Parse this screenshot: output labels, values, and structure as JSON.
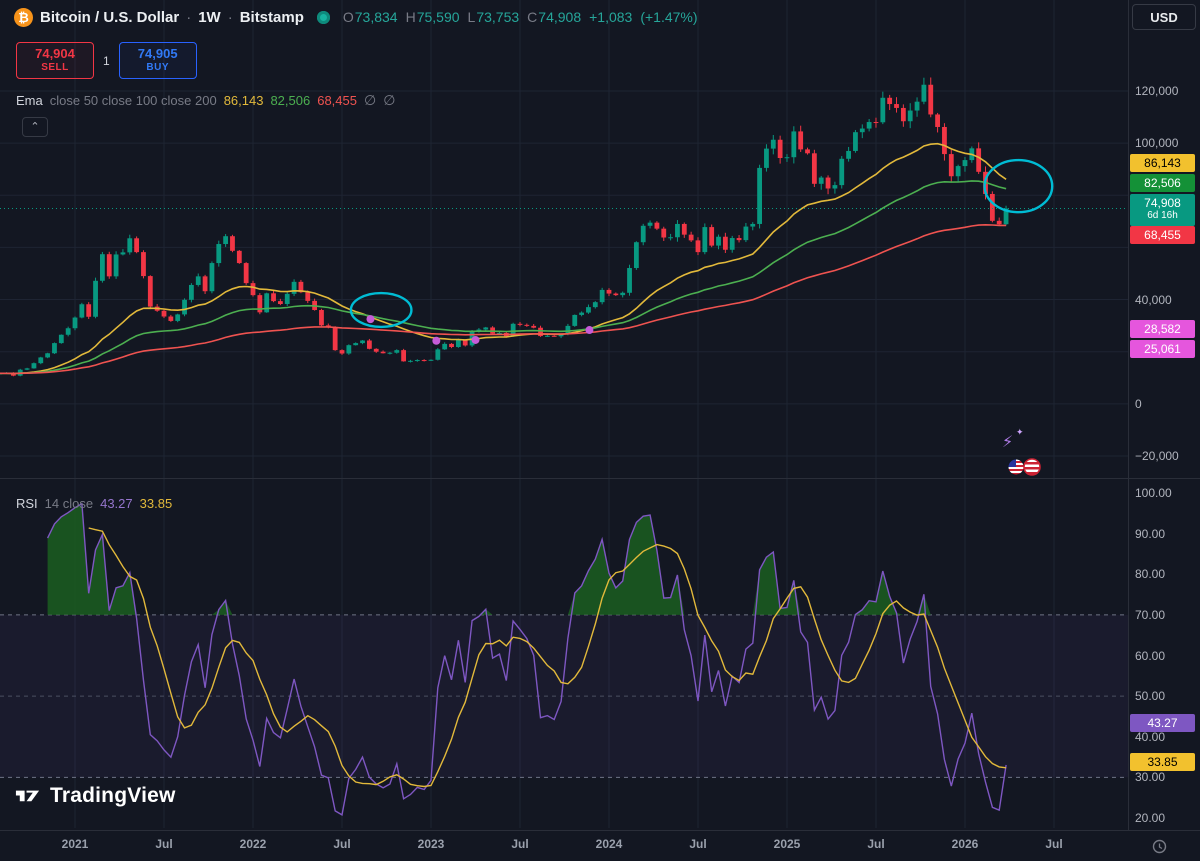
{
  "header": {
    "symbol_icon": "₿",
    "symbol": "Bitcoin / U.S. Dollar",
    "separator": "·",
    "interval": "1W",
    "exchange": "Bitstamp",
    "ohlc": {
      "o_label": "O",
      "o_value": "73,834",
      "h_label": "H",
      "h_value": "75,590",
      "l_label": "L",
      "l_value": "73,753",
      "c_label": "C",
      "c_value": "74,908",
      "change": "+1,083",
      "change_pct": "(+1.47%)"
    },
    "currency_button": "USD"
  },
  "trade_panel": {
    "sell_price": "74,904",
    "sell_label": "SELL",
    "spread": "1",
    "buy_price": "74,905",
    "buy_label": "BUY"
  },
  "ema_legend": {
    "title": "Ema",
    "params": "close 50 close 100 close 200",
    "ema50_value": "86,143",
    "ema100_value": "82,506",
    "ema200_value": "68,455",
    "toggle_icon": "∅"
  },
  "rsi_legend": {
    "title": "RSI",
    "params": "14 close",
    "rsi_value": "43.27",
    "ma_value": "33.85"
  },
  "watermark": {
    "text": "TradingView"
  },
  "icons": {
    "collapse_chevron": "⌃",
    "sparkle_bolt": "⚡",
    "sparkle_star": "✦"
  },
  "colors": {
    "background": "#131722",
    "up": "#089981",
    "down": "#f23645",
    "ema50": "#e2b93b",
    "ema100": "#4caf50",
    "ema200": "#ef5350",
    "rsi": "#7e57c2",
    "rsi_ma": "#e2b93b",
    "sell": "#f23645",
    "buy": "#2962ff",
    "annotation": "#00bcd4",
    "dot": "#c65cd8",
    "current_price": "#089981"
  },
  "chart_data": {
    "type": "candlestick",
    "interval": "1W",
    "x_range": [
      2020.55,
      2026.92
    ],
    "price_pane": {
      "ylim_usd": [
        -25000,
        140000
      ]
    },
    "series": {
      "t0": 2020.577,
      "dt": 0.03846,
      "closes_k": [
        11.7,
        11.9,
        10.8,
        13.1,
        13.6,
        15.6,
        17.8,
        19.4,
        23.3,
        26.5,
        29.0,
        33.1,
        38.2,
        33.4,
        47.2,
        57.4,
        48.9,
        57.3,
        58.1,
        63.5,
        58.2,
        49.0,
        37.3,
        35.7,
        33.5,
        31.8,
        34.3,
        39.9,
        45.6,
        48.9,
        43.2,
        54.0,
        61.3,
        64.3,
        58.7,
        54.0,
        46.3,
        41.7,
        35.1,
        42.4,
        39.4,
        38.3,
        42.2,
        46.8,
        42.8,
        39.5,
        36.0,
        30.1,
        29.5,
        20.6,
        19.3,
        22.5,
        23.3,
        24.3,
        21.1,
        20.0,
        19.4,
        19.6,
        20.6,
        16.3,
        16.5,
        16.8,
        16.6,
        16.9,
        20.9,
        23.0,
        21.8,
        24.6,
        22.4,
        28.0,
        28.5,
        29.3,
        26.9,
        27.2,
        25.9,
        30.7,
        30.3,
        29.9,
        29.2,
        26.0,
        26.1,
        25.9,
        26.6,
        29.9,
        34.1,
        35.0,
        37.1,
        39.0,
        43.7,
        42.3,
        41.7,
        42.6,
        52.1,
        62.0,
        68.3,
        69.5,
        67.2,
        63.8,
        63.9,
        69.0,
        64.9,
        62.7,
        58.2,
        67.8,
        60.7,
        64.1,
        59.1,
        63.6,
        62.8,
        68.0,
        69.0,
        90.5,
        97.9,
        101.3,
        94.3,
        94.6,
        104.5,
        97.6,
        96.1,
        84.4,
        86.8,
        82.6,
        83.9,
        94.0,
        97.0,
        104.2,
        105.6,
        108.1,
        108.0,
        117.4,
        115.0,
        113.5,
        108.4,
        112.5,
        115.9,
        122.4,
        111.0,
        106.2,
        95.8,
        87.3,
        91.2,
        93.5,
        98.0,
        89.0,
        80.5,
        70.2,
        68.9,
        74.908
      ]
    },
    "emas": [
      {
        "label": "EMA 50",
        "period": 25,
        "color": "#e2b93b",
        "end_value_k": 86.143
      },
      {
        "label": "EMA 100",
        "period": 50,
        "color": "#4caf50",
        "end_value_k": 82.506
      },
      {
        "label": "EMA 200",
        "period": 100,
        "color": "#ef5350",
        "end_value_k": 68.455
      }
    ],
    "price_line_usd": 74908,
    "rsi_pane": {
      "period": 7,
      "ma_period": 7,
      "ylim": [
        17,
        102
      ],
      "band": [
        30,
        70
      ],
      "mid": 50,
      "overbought_fill": "rgba(27,94,32,0.85)",
      "band_fill": "rgba(126,87,194,0.07)",
      "last": 43.27,
      "ma_last": 33.85
    },
    "price_axis": {
      "ticks": [
        {
          "label": "120,000",
          "value": 120000
        },
        {
          "label": "100,000",
          "value": 100000
        },
        {
          "label": "40,000",
          "value": 40000
        },
        {
          "label": "0",
          "value": 0
        },
        {
          "label": "−20,000",
          "value": -20000
        }
      ],
      "grid": [
        120000,
        100000,
        80000,
        60000,
        40000,
        20000,
        0,
        -20000
      ],
      "badges": [
        {
          "text": "86,143",
          "value": 86143,
          "bg": "#f2c12e",
          "fg": "#000000"
        },
        {
          "text": "82,506",
          "value": 82506,
          "bg": "#149137",
          "fg": "#ffffff"
        },
        {
          "text": "74,908",
          "sub": "6d 16h",
          "value": 74908,
          "bg": "#089981",
          "fg": "#ffffff"
        },
        {
          "text": "68,455",
          "value": 68455,
          "bg": "#f23645",
          "fg": "#ffffff"
        },
        {
          "text": "28,582",
          "value": 28582,
          "bg": "#e556dd",
          "fg": "#ffffff"
        },
        {
          "text": "25,061",
          "value": 25061,
          "bg": "#e556dd",
          "fg": "#ffffff"
        }
      ]
    },
    "time_axis": {
      "ticks": [
        {
          "label": "2021",
          "t": 2021
        },
        {
          "label": "Jul",
          "t": 2021.5
        },
        {
          "label": "2022",
          "t": 2022
        },
        {
          "label": "Jul",
          "t": 2022.5
        },
        {
          "label": "2023",
          "t": 2023
        },
        {
          "label": "Jul",
          "t": 2023.5
        },
        {
          "label": "2024",
          "t": 2024
        },
        {
          "label": "Jul",
          "t": 2024.5
        },
        {
          "label": "2025",
          "t": 2025
        },
        {
          "label": "Jul",
          "t": 2025.5
        },
        {
          "label": "2026",
          "t": 2026
        },
        {
          "label": "Jul",
          "t": 2026.5
        }
      ]
    },
    "rsi_axis": {
      "ticks": [
        {
          "label": "100.00",
          "value": 100
        },
        {
          "label": "90.00",
          "value": 90
        },
        {
          "label": "80.00",
          "value": 80
        },
        {
          "label": "70.00",
          "value": 70
        },
        {
          "label": "60.00",
          "value": 60
        },
        {
          "label": "50.00",
          "value": 50
        },
        {
          "label": "40.00",
          "value": 40
        },
        {
          "label": "30.00",
          "value": 30
        },
        {
          "label": "20.00",
          "value": 20
        }
      ],
      "badges": [
        {
          "text": "43.27",
          "value": 43.27,
          "bg": "#7e57c2",
          "fg": "#ffffff"
        },
        {
          "text": "33.85",
          "value": 33.85,
          "bg": "#f2c12e",
          "fg": "#000000"
        }
      ]
    },
    "annotations": {
      "ellipses": [
        {
          "t": 2022.72,
          "price_usd": 36000,
          "rt": 0.17,
          "rprice_usd": 6500
        },
        {
          "t": 2026.3,
          "price_usd": 83500,
          "rt": 0.19,
          "rprice_usd": 10000
        }
      ],
      "dots": [
        {
          "t": 2022.66,
          "price_usd": 32500
        },
        {
          "t": 2023.03,
          "price_usd": 24200
        },
        {
          "t": 2023.25,
          "price_usd": 24500
        },
        {
          "t": 2023.89,
          "price_usd": 28300
        }
      ]
    }
  }
}
